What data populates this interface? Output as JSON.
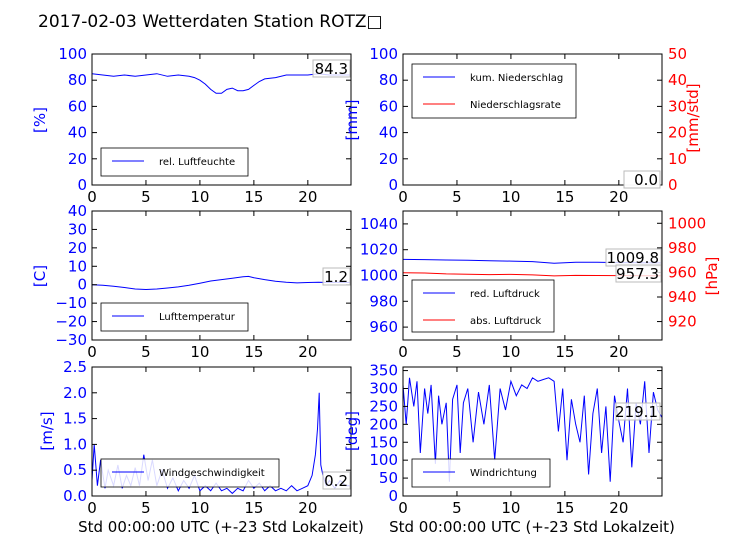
{
  "figure_title": "2017-02-03 Wetterdaten Station ROTZ□",
  "colors": {
    "primary": "#0000ff",
    "secondary": "#ff0000",
    "text": "#000000"
  },
  "chart_data": [
    {
      "id": "humidity",
      "type": "line",
      "xlim": [
        0,
        24
      ],
      "xticks": [
        "0",
        "5",
        "10",
        "15",
        "20"
      ],
      "ylim": [
        0,
        100
      ],
      "yticks": [
        "0",
        "20",
        "40",
        "60",
        "80",
        "100"
      ],
      "ylabel": "[%]",
      "legend": [
        "rel. Luftfeuchte"
      ],
      "legend_position": "bottom-left",
      "current_values": [
        "84.3"
      ],
      "series": [
        {
          "name": "rel. Luftfeuchte",
          "color": "#0000ff",
          "x": [
            0,
            1,
            2,
            3,
            4,
            5,
            6,
            7,
            8,
            9,
            9.5,
            10,
            10.5,
            11,
            11.5,
            12,
            12.5,
            13,
            13.5,
            14,
            14.5,
            15,
            15.5,
            16,
            17,
            18,
            19,
            20,
            21,
            22,
            23,
            24
          ],
          "y": [
            85,
            84,
            83,
            84,
            83,
            84,
            85,
            83,
            84,
            83,
            82,
            80,
            77,
            73,
            70,
            70,
            73,
            74,
            72,
            72,
            73,
            76,
            79,
            81,
            82,
            84,
            84,
            84,
            85,
            84,
            84,
            84
          ]
        }
      ]
    },
    {
      "id": "precipitation",
      "type": "line",
      "xlim": [
        0,
        24
      ],
      "xticks": [
        "0",
        "5",
        "10",
        "15",
        "20"
      ],
      "ylim": [
        0,
        100
      ],
      "yticks": [
        "0",
        "20",
        "40",
        "60",
        "80",
        "100"
      ],
      "ylabel": "[mm]",
      "y2lim": [
        0,
        50
      ],
      "y2ticks": [
        "0",
        "10",
        "20",
        "30",
        "40",
        "50"
      ],
      "y2label": "[mm/std]",
      "legend": [
        "kum. Niederschlag",
        "Niederschlagsrate"
      ],
      "legend_position": "top-left",
      "current_values": [
        "0.0",
        "0.0"
      ],
      "series": [
        {
          "name": "kum. Niederschlag",
          "color": "#0000ff",
          "x": [
            0,
            24
          ],
          "y": [
            0,
            0
          ]
        },
        {
          "name": "Niederschlagsrate",
          "color": "#ff0000",
          "axis": "right",
          "x": [
            0,
            24
          ],
          "y": [
            0,
            0
          ]
        }
      ]
    },
    {
      "id": "temperature",
      "type": "line",
      "xlim": [
        0,
        24
      ],
      "xticks": [
        "0",
        "5",
        "10",
        "15",
        "20"
      ],
      "ylim": [
        -30,
        40
      ],
      "yticks": [
        "−30",
        "−20",
        "−10",
        "0",
        "10",
        "20",
        "30",
        "40"
      ],
      "ylabel": "[C]",
      "legend": [
        "Lufttemperatur"
      ],
      "legend_position": "bottom-left",
      "current_values": [
        "1.2"
      ],
      "series": [
        {
          "name": "Lufttemperatur",
          "color": "#0000ff",
          "x": [
            0,
            1,
            2,
            3,
            4,
            5,
            6,
            7,
            8,
            9,
            10,
            11,
            12,
            13,
            14,
            14.5,
            15,
            16,
            17,
            18,
            19,
            20,
            21,
            22,
            23,
            24
          ],
          "y": [
            0,
            -0.3,
            -0.8,
            -1.5,
            -2.3,
            -2.6,
            -2.3,
            -1.8,
            -1.2,
            -0.3,
            0.8,
            2.0,
            2.8,
            3.5,
            4.3,
            4.5,
            3.8,
            2.8,
            1.9,
            1.3,
            1.0,
            1.2,
            1.3,
            1.2,
            1.3,
            1.2
          ]
        }
      ]
    },
    {
      "id": "pressure",
      "type": "line",
      "xlim": [
        0,
        24
      ],
      "xticks": [
        "0",
        "5",
        "10",
        "15",
        "20"
      ],
      "ylim": [
        950,
        1050
      ],
      "yticks": [
        "960",
        "980",
        "1000",
        "1020",
        "1040"
      ],
      "y2lim": [
        905,
        1010
      ],
      "y2ticks": [
        "920",
        "940",
        "960",
        "980",
        "1000"
      ],
      "y2label": "[hPa]",
      "legend": [
        "red. Luftdruck",
        "abs. Luftdruck"
      ],
      "legend_position": "bottom-left",
      "current_values": [
        "1009.8",
        "957.3"
      ],
      "series": [
        {
          "name": "red. Luftdruck",
          "color": "#0000ff",
          "x": [
            0,
            2,
            4,
            6,
            8,
            10,
            12,
            14,
            16,
            18,
            20,
            22,
            24
          ],
          "y": [
            1012.5,
            1012.3,
            1012.0,
            1011.8,
            1011.5,
            1011.2,
            1010.8,
            1009.5,
            1010.2,
            1010.3,
            1010.0,
            1009.9,
            1009.8
          ]
        },
        {
          "name": "abs. Luftdruck",
          "color": "#ff0000",
          "axis": "right",
          "x": [
            0,
            2,
            4,
            6,
            8,
            10,
            12,
            14,
            16,
            18,
            20,
            22,
            24
          ],
          "y": [
            959.8,
            959.5,
            958.8,
            958.5,
            958.2,
            958.4,
            958.0,
            957.2,
            957.6,
            957.5,
            957.4,
            957.3,
            957.3
          ]
        }
      ]
    },
    {
      "id": "wind-speed",
      "type": "line",
      "xlim": [
        0,
        24
      ],
      "xticks": [
        "0",
        "5",
        "10",
        "15",
        "20"
      ],
      "ylim": [
        0,
        2.5
      ],
      "yticks": [
        "0.0",
        "0.5",
        "1.0",
        "1.5",
        "2.0",
        "2.5"
      ],
      "ylabel": "[m/s]",
      "xlabel": "Std 00:00:00 UTC (+-23 Std Lokalzeit)",
      "legend": [
        "Windgeschwindigkeit"
      ],
      "legend_position": "bottom-left",
      "current_values": [
        "0.2"
      ],
      "series": [
        {
          "name": "Windgeschwindigkeit",
          "color": "#0000ff",
          "x": [
            0,
            0.2,
            0.5,
            0.8,
            1.2,
            1.5,
            2,
            2.4,
            2.8,
            3.2,
            3.6,
            4,
            4.4,
            4.8,
            5.2,
            5.6,
            6,
            6.5,
            7,
            7.5,
            8,
            8.5,
            9,
            9.5,
            10,
            10.5,
            11,
            11.5,
            12,
            12.5,
            13,
            13.5,
            14,
            14.5,
            15,
            15.5,
            16,
            16.5,
            17,
            17.5,
            18,
            18.5,
            19,
            19.5,
            20,
            20.4,
            20.7,
            20.9,
            21.05,
            21.2,
            21.4,
            21.7,
            22,
            22.5,
            23,
            23.5,
            24
          ],
          "y": [
            0.3,
            1.0,
            0.2,
            0.7,
            0.15,
            0.5,
            0.2,
            0.6,
            0.15,
            0.4,
            0.2,
            0.55,
            0.2,
            0.8,
            0.3,
            0.7,
            0.2,
            0.5,
            0.15,
            0.35,
            0.1,
            0.3,
            0.15,
            0.4,
            0.1,
            0.2,
            0.1,
            0.25,
            0.1,
            0.15,
            0.05,
            0.15,
            0.1,
            0.3,
            0.15,
            0.25,
            0.1,
            0.2,
            0.1,
            0.15,
            0.1,
            0.2,
            0.1,
            0.15,
            0.2,
            0.4,
            0.8,
            1.3,
            2.0,
            0.6,
            0.4,
            0.2,
            0.3,
            0.15,
            0.3,
            0.2,
            0.2
          ]
        }
      ]
    },
    {
      "id": "wind-direction",
      "type": "line",
      "xlim": [
        0,
        24
      ],
      "xticks": [
        "0",
        "5",
        "10",
        "15",
        "20"
      ],
      "ylim": [
        0,
        360
      ],
      "yticks": [
        "0",
        "50",
        "100",
        "150",
        "200",
        "250",
        "300",
        "350"
      ],
      "ylabel": "[deg]",
      "xlabel": "Std 00:00:00 UTC (+-23 Std Lokalzeit)",
      "legend": [
        "Windrichtung"
      ],
      "legend_position": "bottom-left",
      "current_values": [
        "219.1"
      ],
      "series": [
        {
          "name": "Windrichtung",
          "color": "#0000ff",
          "x": [
            0,
            0.3,
            0.6,
            1,
            1.3,
            1.6,
            2,
            2.3,
            2.6,
            3,
            3.3,
            3.6,
            4,
            4.3,
            4.6,
            5,
            5.3,
            5.6,
            6,
            6.5,
            7,
            7.5,
            8,
            8.5,
            9,
            9.5,
            10,
            10.5,
            11,
            11.5,
            12,
            12.5,
            13,
            13.5,
            14,
            14.4,
            14.8,
            15.2,
            15.6,
            16,
            16.4,
            16.8,
            17.2,
            17.6,
            18,
            18.4,
            18.8,
            19.2,
            19.6,
            20,
            20.4,
            20.8,
            21.2,
            21.6,
            22,
            22.4,
            22.8,
            23.2,
            23.6,
            24
          ],
          "y": [
            310,
            200,
            330,
            250,
            320,
            120,
            300,
            230,
            310,
            90,
            280,
            200,
            260,
            40,
            270,
            310,
            120,
            260,
            300,
            150,
            290,
            200,
            310,
            100,
            300,
            240,
            320,
            280,
            310,
            300,
            330,
            320,
            325,
            330,
            320,
            180,
            300,
            100,
            270,
            200,
            150,
            280,
            60,
            230,
            300,
            120,
            250,
            40,
            280,
            210,
            150,
            300,
            80,
            260,
            200,
            320,
            120,
            290,
            240,
            219
          ]
        }
      ]
    }
  ]
}
